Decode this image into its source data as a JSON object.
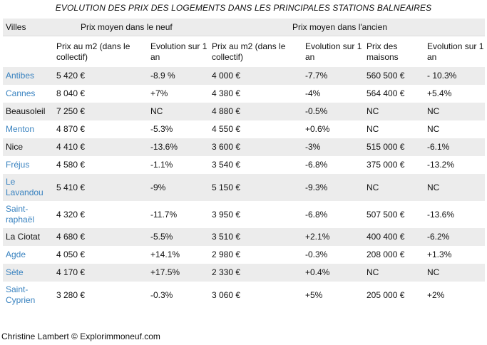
{
  "title": "EVOLUTION DES PRIX DES LOGEMENTS DANS LES PRINCIPALES STATIONS BALNEAIRES",
  "headers": {
    "villes": "Villes",
    "group_neuf": "Prix moyen dans le neuf",
    "group_ancien": "Prix moyen dans l'ancien",
    "cols": [
      "Prix au m2 (dans le collectif)",
      "Evolution sur 1 an",
      "Prix au m2 (dans le collectif)",
      "Evolution sur 1 an",
      "Prix des maisons",
      "Evolution sur 1 an"
    ]
  },
  "rows": [
    {
      "city": "Antibes",
      "linked": true,
      "cells": [
        "5 420  €",
        "-8.9 %",
        "4 000 €",
        "-7.7%",
        "560 500 €",
        "- 10.3%"
      ]
    },
    {
      "city": "Cannes",
      "linked": true,
      "cells": [
        "8 040  €",
        "+7%",
        "4 380 €",
        "-4%",
        "564 400 €",
        "+5.4%"
      ]
    },
    {
      "city": "Beausoleil",
      "linked": false,
      "cells": [
        "7 250 €",
        "NC",
        "4 880 €",
        "-0.5%",
        "NC",
        "NC"
      ]
    },
    {
      "city": "Menton",
      "linked": true,
      "cells": [
        "4 870 €",
        "-5.3%",
        "4 550 €",
        "+0.6%",
        "NC",
        "NC"
      ]
    },
    {
      "city": "Nice",
      "linked": false,
      "cells": [
        "4 410 €",
        "-13.6%",
        "3 600 €",
        "-3%",
        "515 000 €",
        "-6.1%"
      ]
    },
    {
      "city": "Fréjus",
      "linked": true,
      "cells": [
        "4 580 €",
        "-1.1%",
        "3 540 €",
        "-6.8%",
        "375 000 €",
        "-13.2%"
      ]
    },
    {
      "city": "Le Lavandou",
      "linked": true,
      "cells": [
        "5 410 €",
        "-9%",
        "5 150 €",
        "-9.3%",
        "NC",
        "NC"
      ]
    },
    {
      "city": "Saint-raphaël",
      "linked": true,
      "cells": [
        "4 320 €",
        "-11.7%",
        "3 950 €",
        "-6.8%",
        "507 500 €",
        "-13.6%"
      ]
    },
    {
      "city": "La Ciotat",
      "linked": false,
      "cells": [
        "4 680 €",
        "-5.5%",
        "3 510 €",
        "+2.1%",
        "400 400 €",
        "-6.2%"
      ]
    },
    {
      "city": "Agde",
      "linked": true,
      "cells": [
        "4 050 €",
        "+14.1%",
        "2 980 €",
        "-0.3%",
        "208 000 €",
        "+1.3%"
      ]
    },
    {
      "city": "Sète",
      "linked": true,
      "cells": [
        "4 170 €",
        "+17.5%",
        "2 330 €",
        "+0.4%",
        "NC",
        "NC"
      ]
    },
    {
      "city": "Saint-Cyprien",
      "linked": true,
      "cells": [
        "3 280 €",
        "-0.3%",
        "3 060 €",
        "+5%",
        "205 000 €",
        "+2%"
      ]
    }
  ],
  "footer": "Christine Lambert © Explorimmoneuf.com",
  "colors": {
    "link": "#3a83c0",
    "shade": "#ececec"
  }
}
